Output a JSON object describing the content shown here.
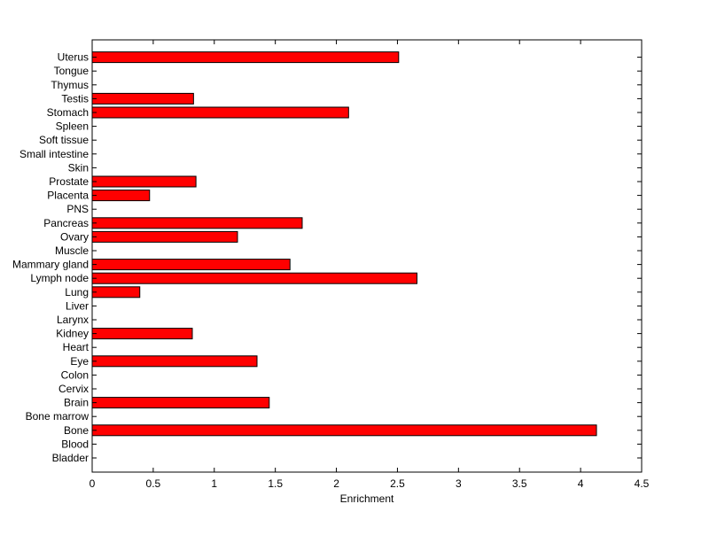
{
  "chart_data": {
    "type": "bar",
    "orientation": "horizontal",
    "title": "",
    "xlabel": "Enrichment",
    "ylabel": "",
    "xlim": [
      0,
      4.5
    ],
    "xticks": [
      "0",
      "0.5",
      "1",
      "1.5",
      "2",
      "2.5",
      "3",
      "3.5",
      "4",
      "4.5"
    ],
    "categories": [
      "Bladder",
      "Blood",
      "Bone",
      "Bone marrow",
      "Brain",
      "Cervix",
      "Colon",
      "Eye",
      "Heart",
      "Kidney",
      "Larynx",
      "Liver",
      "Lung",
      "Lymph node",
      "Mammary gland",
      "Muscle",
      "Ovary",
      "Pancreas",
      "PNS",
      "Placenta",
      "Prostate",
      "Skin",
      "Small intestine",
      "Soft tissue",
      "Spleen",
      "Stomach",
      "Testis",
      "Thymus",
      "Tongue",
      "Uterus"
    ],
    "values": [
      0,
      0,
      4.13,
      0,
      1.45,
      0,
      0,
      1.35,
      0,
      0.82,
      0,
      0,
      0.39,
      2.66,
      1.62,
      0,
      1.19,
      1.72,
      0,
      0.47,
      0.85,
      0,
      0,
      0,
      0,
      2.1,
      0.83,
      0,
      0,
      2.51
    ],
    "bar_color": "#ff0000",
    "edge_color": "#000000",
    "grid": false,
    "legend": "none"
  }
}
